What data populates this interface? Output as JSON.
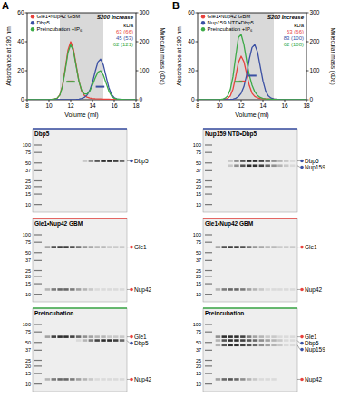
{
  "panel_labels": [
    "A",
    "B"
  ],
  "chart_data": [
    {
      "type": "line",
      "xlabel": "Volume (ml)",
      "ylabel": "Absorbance at 280 nm",
      "y2label": "Molecular mass (kDa)",
      "annotations": [
        "S200 Increase",
        "kDa"
      ],
      "x": [
        8,
        8.25,
        8.5,
        8.75,
        9,
        9.25,
        9.5,
        9.75,
        10,
        10.25,
        10.5,
        10.75,
        11,
        11.25,
        11.5,
        11.75,
        12,
        12.25,
        12.5,
        12.75,
        13,
        13.25,
        13.5,
        13.75,
        14,
        14.25,
        14.5,
        14.75,
        15,
        15.25,
        15.5,
        15.75,
        16,
        16.25,
        16.5,
        16.75,
        17,
        17.25,
        17.5,
        17.75,
        18
      ],
      "xlim": [
        8,
        18
      ],
      "xticks": [
        8,
        10,
        12,
        14,
        16,
        18
      ],
      "ylim": [
        0,
        60
      ],
      "yticks": [
        0,
        20,
        40,
        60
      ],
      "y2lim": [
        0,
        300
      ],
      "y2ticks": [
        0,
        100,
        200,
        300
      ],
      "legend": "top-left",
      "shaded_range": [
        11,
        15
      ],
      "series": [
        {
          "name": "Gle1•Nup42 GBM",
          "color": "#e8413c",
          "mass_label": "63 (66)",
          "mass_segment": {
            "x": [
              11.7,
              12.3
            ],
            "value": 63
          },
          "values": [
            0,
            0,
            0,
            0,
            0,
            0,
            0,
            0,
            0,
            0.2,
            0.5,
            1,
            3.4,
            9.9,
            21.5,
            34.3,
            40,
            35,
            24,
            13,
            6,
            3,
            1.8,
            1.2,
            0.9,
            0.7,
            0.6,
            0.5,
            0.4,
            0.3,
            0.3,
            0.2,
            0.2,
            0.2,
            0.1,
            0.1,
            0.1,
            0.1,
            0,
            0,
            0
          ]
        },
        {
          "name": "Dbp5",
          "color": "#3a4fa3",
          "mass_label": "45 (53)",
          "mass_segment": {
            "x": [
              14.3,
              15.1
            ],
            "value": 45
          },
          "values": [
            0,
            0,
            0,
            0,
            0,
            0,
            0,
            0,
            0,
            0,
            0,
            0,
            0,
            0,
            0,
            0,
            0,
            0.1,
            0.2,
            0.4,
            0.8,
            1.6,
            3.2,
            6.5,
            12,
            19.5,
            26,
            28,
            24,
            16,
            8.5,
            3.6,
            1.4,
            0.6,
            0.3,
            0.2,
            0.1,
            0.1,
            0,
            0,
            0
          ]
        },
        {
          "name": "Preincubation +IP₆",
          "color": "#3daa48",
          "mass_label": "62 (121)",
          "mass_segment": {
            "x": [
              11.6,
              12.4
            ],
            "value": 62
          },
          "values": [
            0,
            0,
            0,
            0,
            0,
            0,
            0,
            0,
            0,
            0.2,
            0.5,
            1,
            3.2,
            9.4,
            20.5,
            32.5,
            38,
            33.5,
            23,
            12.8,
            6.5,
            4,
            4,
            6,
            10,
            15,
            19,
            20,
            17,
            11.5,
            6,
            2.5,
            1,
            0.5,
            0.3,
            0.2,
            0.1,
            0.1,
            0,
            0,
            0
          ]
        }
      ]
    },
    {
      "type": "line",
      "xlabel": "Volume (ml)",
      "ylabel": "Absorbance at 280 nm",
      "y2label": "Molecular mass (kDa)",
      "annotations": [
        "S200 Increase",
        "kDa"
      ],
      "x": [
        8,
        8.25,
        8.5,
        8.75,
        9,
        9.25,
        9.5,
        9.75,
        10,
        10.25,
        10.5,
        10.75,
        11,
        11.25,
        11.5,
        11.75,
        12,
        12.25,
        12.5,
        12.75,
        13,
        13.25,
        13.5,
        13.75,
        14,
        14.25,
        14.5,
        14.75,
        15,
        15.25,
        15.5,
        15.75,
        16,
        16.25,
        16.5,
        16.75,
        17,
        17.25,
        17.5,
        17.75,
        18
      ],
      "xlim": [
        8,
        18
      ],
      "xticks": [
        8,
        10,
        12,
        14,
        16,
        18
      ],
      "ylim": [
        0,
        60
      ],
      "yticks": [
        0,
        20,
        40,
        60
      ],
      "y2lim": [
        0,
        300
      ],
      "y2ticks": [
        0,
        100,
        200,
        300
      ],
      "legend": "top-left",
      "shaded_range": [
        11,
        15
      ],
      "series": [
        {
          "name": "Gle1•Nup42 GBM",
          "color": "#e8413c",
          "mass_label": "63 (66)",
          "mass_segment": {
            "x": [
              11.8,
              12.4
            ],
            "value": 63
          },
          "values": [
            0,
            0,
            0,
            0,
            0,
            0,
            0,
            0,
            0,
            0.1,
            0.4,
            0.8,
            2.6,
            7.4,
            16,
            25.7,
            30,
            26.3,
            18,
            9.8,
            4.5,
            2.3,
            1.4,
            0.9,
            0.7,
            0.5,
            0.5,
            0.4,
            0.3,
            0.2,
            0.2,
            0.2,
            0.1,
            0.1,
            0.1,
            0.1,
            0,
            0,
            0,
            0,
            0
          ]
        },
        {
          "name": "Nup159 NTD•Dbp5",
          "color": "#3a4fa3",
          "mass_label": "83 (100)",
          "mass_segment": {
            "x": [
              12.6,
              13.4
            ],
            "value": 83
          },
          "values": [
            0,
            0,
            0,
            0,
            0,
            0,
            0,
            0,
            0,
            0,
            0,
            0.1,
            0.2,
            0.4,
            1,
            2.2,
            4.5,
            9,
            17,
            28,
            36,
            38,
            33,
            23,
            13,
            6,
            2.6,
            1.1,
            0.5,
            0.3,
            0.2,
            0.1,
            0,
            0,
            0,
            0,
            0,
            0,
            0,
            0,
            0
          ]
        },
        {
          "name": "Preincubation +IP₆",
          "color": "#3daa48",
          "mass_label": "62 (108)",
          "mass_segment": {
            "x": [
              11.4,
              12.1
            ],
            "value": 62
          },
          "values": [
            0,
            0,
            0,
            0,
            0,
            0,
            0,
            0,
            0.1,
            0.3,
            1,
            2.5,
            7,
            16,
            30,
            43,
            45,
            38,
            27,
            17,
            10,
            5.5,
            3,
            1.6,
            0.9,
            0.6,
            0.4,
            0.3,
            0.2,
            0.2,
            0.1,
            0,
            0,
            0,
            0,
            0,
            0,
            0,
            0,
            0,
            0
          ]
        }
      ]
    }
  ],
  "gels": [
    {
      "panel": 0,
      "row": 0,
      "title": "Dbp5",
      "color": "#3a4fa3",
      "ladder": [
        100,
        75,
        50,
        37,
        25,
        20,
        15,
        10
      ],
      "bands": [
        {
          "name": "Dbp5",
          "kda": 54,
          "color": "#3a4fa3",
          "intensities": [
            0,
            0,
            0,
            0,
            0,
            0,
            0.2,
            0.5,
            0.8,
            1,
            1,
            0.9,
            0.7
          ]
        }
      ]
    },
    {
      "panel": 0,
      "row": 1,
      "title": "Gle1•Nup42 GBM",
      "color": "#e8413c",
      "ladder": [
        100,
        75,
        50,
        37,
        25,
        20,
        15,
        10
      ],
      "bands": [
        {
          "name": "Gle1",
          "kda": 62,
          "color": "#e8413c",
          "intensities": [
            0.4,
            0.9,
            1,
            1,
            0.9,
            0.7,
            0.5,
            0.4,
            0.3,
            0.3,
            0.2,
            0.2,
            0.2
          ]
        },
        {
          "name": "Nup42",
          "kda": 12,
          "color": "#e8413c",
          "intensities": [
            0.3,
            0.6,
            0.7,
            0.7,
            0.6,
            0.4,
            0.3,
            0.2,
            0.1,
            0.1,
            0.1,
            0.1,
            0.1
          ]
        }
      ]
    },
    {
      "panel": 0,
      "row": 2,
      "title": "Preincubation",
      "color": "#3daa48",
      "ladder": [
        100,
        75,
        50,
        37,
        25,
        20,
        15,
        10
      ],
      "bands": [
        {
          "name": "Gle1",
          "kda": 62,
          "color": "#e8413c",
          "intensities": [
            0.4,
            0.9,
            1,
            1,
            0.9,
            0.7,
            0.5,
            0.4,
            0.3,
            0.3,
            0.2,
            0.2,
            0.2
          ]
        },
        {
          "name": "Dbp5",
          "kda": 54,
          "color": "#3a4fa3",
          "intensities": [
            0,
            0,
            0,
            0,
            0,
            0.1,
            0.3,
            0.6,
            0.9,
            1,
            1,
            0.9,
            0.7
          ]
        },
        {
          "name": "Nup42",
          "kda": 12,
          "color": "#e8413c",
          "intensities": [
            0.3,
            0.6,
            0.7,
            0.7,
            0.6,
            0.4,
            0.3,
            0.2,
            0.1,
            0.1,
            0.1,
            0.1,
            0.1
          ]
        }
      ]
    },
    {
      "panel": 1,
      "row": 0,
      "title": "Nup159 NTD•Dbp5",
      "color": "#3a4fa3",
      "ladder": [
        100,
        75,
        50,
        37,
        25,
        20,
        15,
        10
      ],
      "bands": [
        {
          "name": "Dbp5",
          "kda": 54,
          "color": "#3a4fa3",
          "intensities": [
            0,
            0,
            0.2,
            0.5,
            0.8,
            1,
            1,
            0.9,
            0.7,
            0.5,
            0.3,
            0.2,
            0.1
          ]
        },
        {
          "name": "Nup159",
          "kda": 45,
          "color": "#3a4fa3",
          "intensities": [
            0,
            0,
            0.2,
            0.5,
            0.8,
            1,
            1,
            0.9,
            0.7,
            0.5,
            0.3,
            0.2,
            0.1
          ]
        }
      ]
    },
    {
      "panel": 1,
      "row": 1,
      "title": "Gle1•Nup42 GBM",
      "color": "#e8413c",
      "ladder": [
        100,
        75,
        50,
        37,
        25,
        20,
        15,
        10
      ],
      "bands": [
        {
          "name": "Gle1",
          "kda": 62,
          "color": "#e8413c",
          "intensities": [
            0.4,
            0.9,
            1,
            1,
            0.9,
            0.7,
            0.5,
            0.4,
            0.3,
            0.3,
            0.2,
            0.2,
            0.2
          ]
        },
        {
          "name": "Nup42",
          "kda": 12,
          "color": "#e8413c",
          "intensities": [
            0.3,
            0.6,
            0.7,
            0.7,
            0.6,
            0.4,
            0.3,
            0.2,
            0.1,
            0.1,
            0.1,
            0.1,
            0.1
          ]
        }
      ]
    },
    {
      "panel": 1,
      "row": 2,
      "title": "Preincubation",
      "color": "#3daa48",
      "ladder": [
        100,
        75,
        50,
        37,
        25,
        20,
        15,
        10
      ],
      "bands": [
        {
          "name": "Gle1",
          "kda": 62,
          "color": "#e8413c",
          "intensities": [
            0.5,
            1,
            1,
            1,
            0.9,
            0.6,
            0.4,
            0.3,
            0.2,
            0.2,
            0.1,
            0.1,
            0.1
          ]
        },
        {
          "name": "Dbp5",
          "kda": 54,
          "color": "#3a4fa3",
          "intensities": [
            0.3,
            0.8,
            1,
            1,
            0.9,
            0.8,
            0.7,
            0.5,
            0.4,
            0.3,
            0.2,
            0.1,
            0.1
          ]
        },
        {
          "name": "Nup159",
          "kda": 45,
          "color": "#3a4fa3",
          "intensities": [
            0.3,
            0.8,
            1,
            1,
            0.9,
            0.8,
            0.7,
            0.5,
            0.4,
            0.3,
            0.2,
            0.1,
            0.1
          ]
        },
        {
          "name": "Nup42",
          "kda": 12,
          "color": "#e8413c",
          "intensities": [
            0.4,
            0.7,
            0.8,
            0.7,
            0.5,
            0.3,
            0.2,
            0.1,
            0.1,
            0.1,
            0,
            0,
            0
          ]
        }
      ]
    }
  ]
}
